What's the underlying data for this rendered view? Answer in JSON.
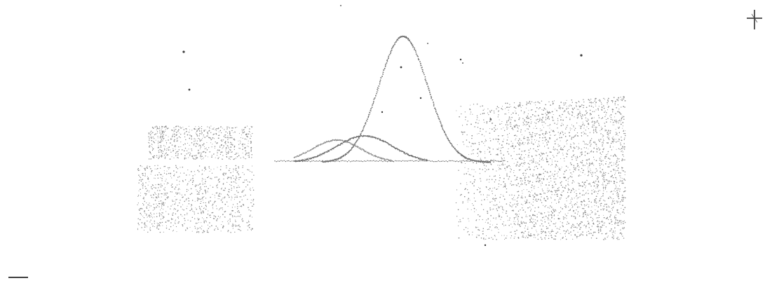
{
  "figure": {
    "ink_color": "#777777",
    "paper_color": "#ffffff",
    "corner_marks": [
      "crosshair-icon",
      "minus-icon"
    ]
  }
}
